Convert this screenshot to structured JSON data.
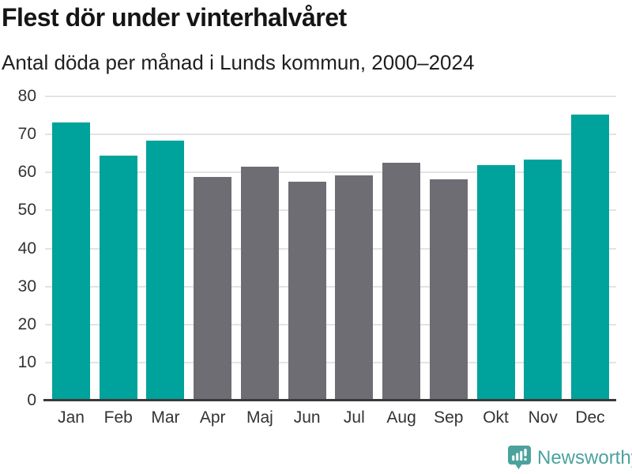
{
  "header": {
    "title": "Flest dör under vinterhalvåret",
    "subtitle": "Antal döda per månad i Lunds kommun, 2000–2024"
  },
  "chart_data": {
    "type": "bar",
    "title": "Flest dör under vinterhalvåret",
    "subtitle": "Antal döda per månad i Lunds kommun, 2000–2024",
    "categories": [
      "Jan",
      "Feb",
      "Mar",
      "Apr",
      "Maj",
      "Jun",
      "Jul",
      "Aug",
      "Sep",
      "Okt",
      "Nov",
      "Dec"
    ],
    "values": [
      73.2,
      64.4,
      68.4,
      58.8,
      61.5,
      57.6,
      59.3,
      62.6,
      58.1,
      62.0,
      63.3,
      75.2
    ],
    "bar_groups": [
      "winter",
      "winter",
      "winter",
      "summer",
      "summer",
      "summer",
      "summer",
      "summer",
      "summer",
      "winter",
      "winter",
      "winter"
    ],
    "group_colors": {
      "winter": "#00a39b",
      "summer": "#6e6d73"
    },
    "xlabel": "",
    "ylabel": "",
    "ylim": [
      0,
      80
    ],
    "yticks": [
      0,
      10,
      20,
      30,
      40,
      50,
      60,
      70,
      80
    ],
    "grid": true,
    "legend": false
  },
  "footer": {
    "brand": "Newsworthy",
    "brand_color": "#4ba29d",
    "logo_icon": "bar-chart-speech-bubble-icon"
  },
  "colors": {
    "winter_bar": "#00a39b",
    "summer_bar": "#6e6d73",
    "gridline": "#e3e3e3",
    "axis_line": "#3a3a3a",
    "title_text": "#151515",
    "tick_text": "#333333"
  }
}
